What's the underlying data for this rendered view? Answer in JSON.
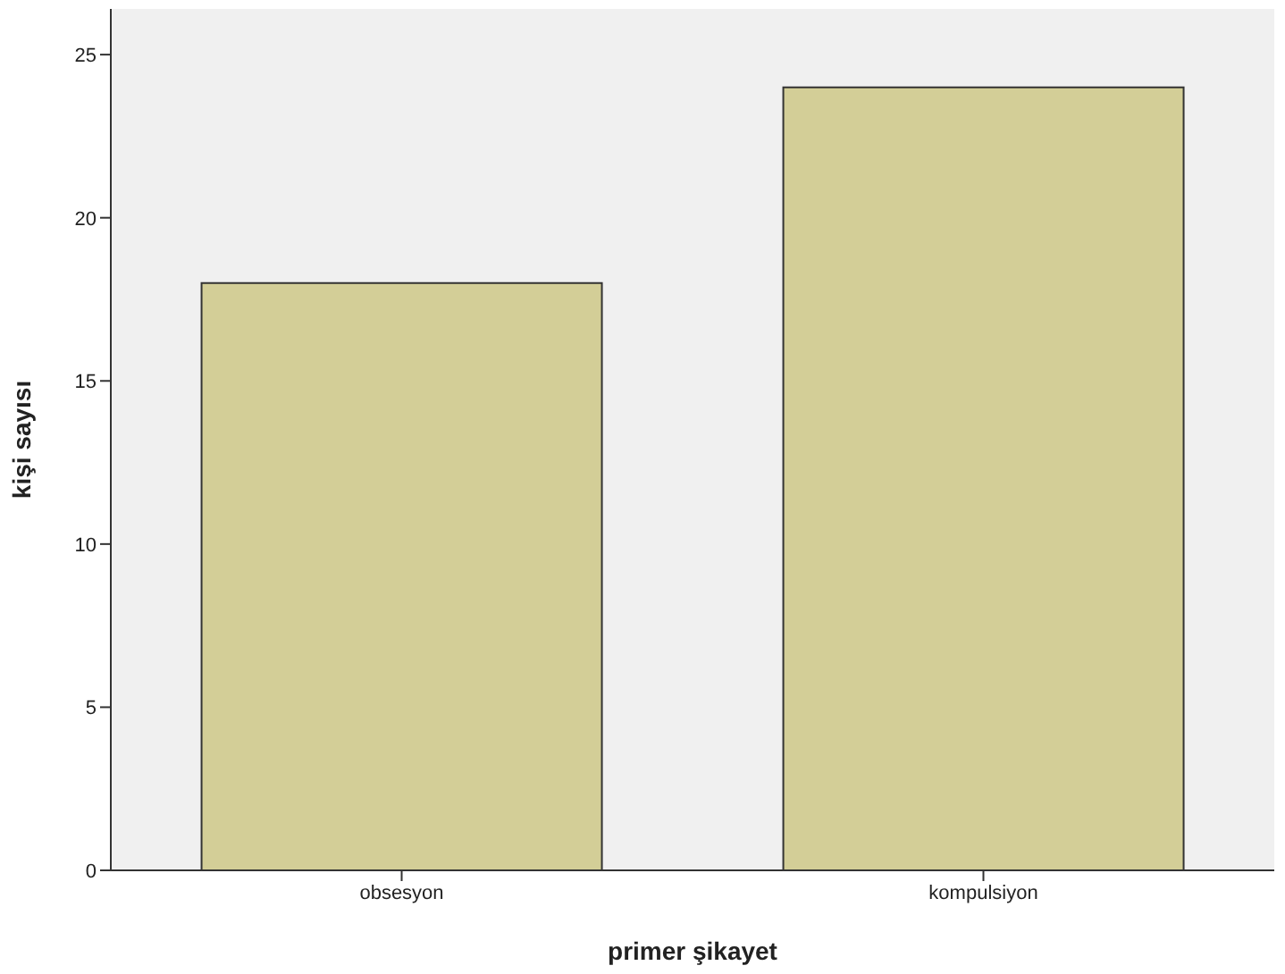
{
  "chart_data": {
    "type": "bar",
    "xlabel": "primer şikayet",
    "ylabel": "kişi sayısı",
    "categories": [
      "obsesyon",
      "kompulsiyon"
    ],
    "values": [
      18,
      24
    ],
    "color": "#d3ce97",
    "ylim": [
      0,
      26.4
    ],
    "yticks": [
      0,
      5,
      10,
      15,
      20,
      25
    ],
    "grid": false,
    "legend": false
  }
}
